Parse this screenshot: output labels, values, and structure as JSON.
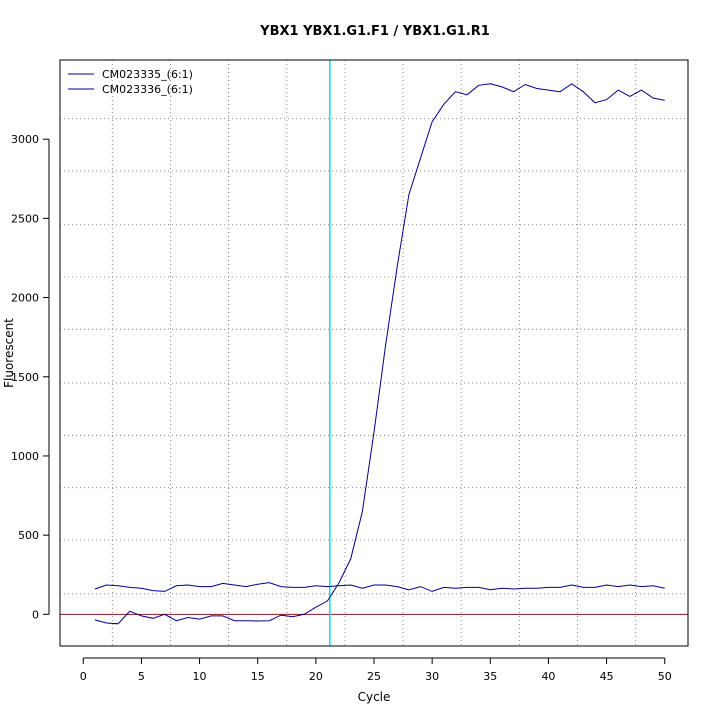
{
  "chart_data": {
    "type": "line",
    "title": "YBX1  YBX1.G1.F1 / YBX1.G1.R1",
    "xlabel": "Cycle",
    "ylabel": "Fluorescent",
    "xlim": [
      -2,
      52
    ],
    "ylim": [
      -200,
      3500
    ],
    "x_ticks": [
      0,
      5,
      10,
      15,
      20,
      25,
      30,
      35,
      40,
      45,
      50
    ],
    "y_ticks": [
      0,
      500,
      1000,
      1500,
      2000,
      2500,
      3000
    ],
    "grid": "dotted",
    "legend_position": "top-left",
    "threshold": {
      "orientation": "vertical",
      "x": 21.2,
      "color": "#00e5ee"
    },
    "baseline": {
      "orientation": "horizontal",
      "y": 0,
      "color": "#8b1a1a"
    },
    "x": [
      1,
      2,
      3,
      4,
      5,
      6,
      7,
      8,
      9,
      10,
      11,
      12,
      13,
      14,
      15,
      16,
      17,
      18,
      19,
      20,
      21,
      22,
      23,
      24,
      25,
      26,
      27,
      28,
      29,
      30,
      31,
      32,
      33,
      34,
      35,
      36,
      37,
      38,
      39,
      40,
      41,
      42,
      43,
      44,
      45,
      46,
      47,
      48,
      49,
      50
    ],
    "series": [
      {
        "name": "CM023335_(6:1)",
        "color": "#00008b",
        "values": [
          -35,
          -55,
          -60,
          20,
          -10,
          -25,
          0,
          -40,
          -20,
          -30,
          -10,
          -10,
          -40,
          -40,
          -42,
          -40,
          -5,
          -15,
          0,
          45,
          85,
          200,
          350,
          650,
          1150,
          1700,
          2200,
          2650,
          2880,
          3110,
          3220,
          3300,
          3280,
          3340,
          3350,
          3330,
          3300,
          3345,
          3320,
          3310,
          3300,
          3350,
          3300,
          3230,
          3250,
          3310,
          3270,
          3310,
          3260,
          3245
        ]
      },
      {
        "name": "CM023336_(6:1)",
        "color": "#00008b",
        "values": [
          160,
          185,
          180,
          170,
          165,
          150,
          145,
          180,
          185,
          175,
          175,
          195,
          185,
          175,
          190,
          200,
          175,
          170,
          170,
          180,
          175,
          180,
          185,
          165,
          185,
          185,
          175,
          155,
          175,
          145,
          170,
          165,
          170,
          170,
          155,
          165,
          160,
          165,
          165,
          170,
          170,
          185,
          170,
          170,
          185,
          175,
          185,
          175,
          180,
          165
        ]
      }
    ]
  }
}
